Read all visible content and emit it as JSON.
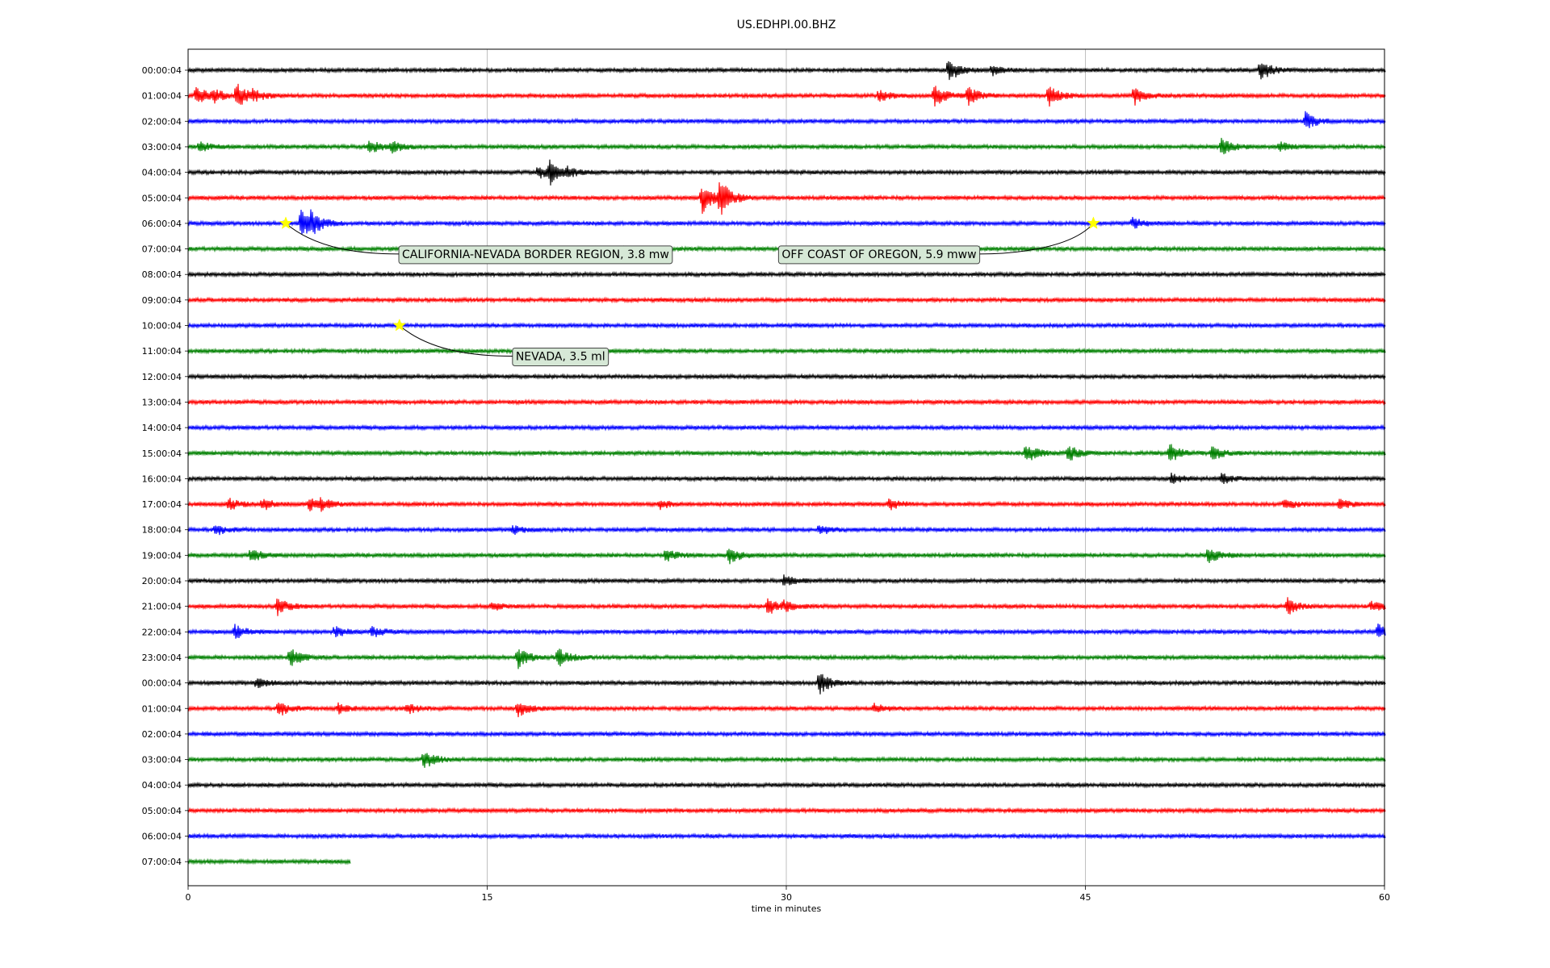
{
  "chart_data": {
    "type": "line",
    "title": "US.EDHPI.00.BHZ",
    "xlabel": "time in minutes",
    "xlim": [
      0,
      60
    ],
    "x_ticks": [
      "0",
      "15",
      "30",
      "45",
      "60"
    ],
    "grid": "vertical",
    "row_labels": [
      "00:00:04",
      "01:00:04",
      "02:00:04",
      "03:00:04",
      "04:00:04",
      "05:00:04",
      "06:00:04",
      "07:00:04",
      "08:00:04",
      "09:00:04",
      "10:00:04",
      "11:00:04",
      "12:00:04",
      "13:00:04",
      "14:00:04",
      "15:00:04",
      "16:00:04",
      "17:00:04",
      "18:00:04",
      "19:00:04",
      "20:00:04",
      "21:00:04",
      "22:00:04",
      "23:00:04",
      "00:00:04",
      "01:00:04",
      "02:00:04",
      "03:00:04",
      "04:00:04",
      "05:00:04",
      "06:00:04",
      "07:00:04"
    ],
    "trace_colors": [
      "#000000",
      "#ff0000",
      "#0000ff",
      "#008000"
    ],
    "last_row_end_minute": 8.1,
    "bursts": [
      {
        "row": 0,
        "minute": 38.1,
        "amp": 1.0
      },
      {
        "row": 0,
        "minute": 40.3,
        "amp": 0.4
      },
      {
        "row": 0,
        "minute": 53.7,
        "amp": 1.0
      },
      {
        "row": 1,
        "minute": 0.4,
        "amp": 0.8
      },
      {
        "row": 1,
        "minute": 1.2,
        "amp": 0.7
      },
      {
        "row": 1,
        "minute": 2.4,
        "amp": 1.2
      },
      {
        "row": 1,
        "minute": 3.2,
        "amp": 0.6
      },
      {
        "row": 1,
        "minute": 34.6,
        "amp": 0.5
      },
      {
        "row": 1,
        "minute": 37.4,
        "amp": 0.9
      },
      {
        "row": 1,
        "minute": 39.1,
        "amp": 0.8
      },
      {
        "row": 1,
        "minute": 43.1,
        "amp": 0.9
      },
      {
        "row": 1,
        "minute": 47.4,
        "amp": 0.8
      },
      {
        "row": 2,
        "minute": 56.0,
        "amp": 0.8
      },
      {
        "row": 3,
        "minute": 0.5,
        "amp": 0.5
      },
      {
        "row": 3,
        "minute": 9.0,
        "amp": 0.7
      },
      {
        "row": 3,
        "minute": 10.2,
        "amp": 0.5
      },
      {
        "row": 3,
        "minute": 51.8,
        "amp": 0.7
      },
      {
        "row": 3,
        "minute": 54.7,
        "amp": 0.4
      },
      {
        "row": 4,
        "minute": 17.5,
        "amp": 0.6
      },
      {
        "row": 4,
        "minute": 18.1,
        "amp": 1.1
      },
      {
        "row": 4,
        "minute": 19.0,
        "amp": 0.5
      },
      {
        "row": 5,
        "minute": 25.7,
        "amp": 1.4
      },
      {
        "row": 5,
        "minute": 26.6,
        "amp": 2.0
      },
      {
        "row": 6,
        "minute": 5.6,
        "amp": 1.4
      },
      {
        "row": 6,
        "minute": 6.1,
        "amp": 1.4
      },
      {
        "row": 6,
        "minute": 47.3,
        "amp": 0.5
      },
      {
        "row": 15,
        "minute": 42.0,
        "amp": 0.9
      },
      {
        "row": 15,
        "minute": 44.1,
        "amp": 0.7
      },
      {
        "row": 15,
        "minute": 49.2,
        "amp": 0.8
      },
      {
        "row": 15,
        "minute": 51.3,
        "amp": 0.6
      },
      {
        "row": 16,
        "minute": 49.3,
        "amp": 0.4
      },
      {
        "row": 16,
        "minute": 51.8,
        "amp": 0.5
      },
      {
        "row": 17,
        "minute": 2.0,
        "amp": 0.5
      },
      {
        "row": 17,
        "minute": 3.7,
        "amp": 0.5
      },
      {
        "row": 17,
        "minute": 6.0,
        "amp": 0.6
      },
      {
        "row": 17,
        "minute": 6.6,
        "amp": 0.6
      },
      {
        "row": 17,
        "minute": 23.6,
        "amp": 0.4
      },
      {
        "row": 17,
        "minute": 35.1,
        "amp": 0.5
      },
      {
        "row": 17,
        "minute": 54.9,
        "amp": 0.5
      },
      {
        "row": 17,
        "minute": 57.7,
        "amp": 0.5
      },
      {
        "row": 18,
        "minute": 1.3,
        "amp": 0.5
      },
      {
        "row": 18,
        "minute": 16.2,
        "amp": 0.4
      },
      {
        "row": 18,
        "minute": 31.6,
        "amp": 0.5
      },
      {
        "row": 19,
        "minute": 3.1,
        "amp": 0.6
      },
      {
        "row": 19,
        "minute": 23.9,
        "amp": 0.6
      },
      {
        "row": 19,
        "minute": 27.1,
        "amp": 0.7
      },
      {
        "row": 19,
        "minute": 51.1,
        "amp": 0.9
      },
      {
        "row": 20,
        "minute": 29.8,
        "amp": 0.5
      },
      {
        "row": 21,
        "minute": 4.4,
        "amp": 0.8
      },
      {
        "row": 21,
        "minute": 15.2,
        "amp": 0.4
      },
      {
        "row": 21,
        "minute": 29.0,
        "amp": 0.8
      },
      {
        "row": 21,
        "minute": 29.8,
        "amp": 0.6
      },
      {
        "row": 21,
        "minute": 55.1,
        "amp": 0.7
      },
      {
        "row": 21,
        "minute": 59.3,
        "amp": 0.5
      },
      {
        "row": 22,
        "minute": 2.3,
        "amp": 0.6
      },
      {
        "row": 22,
        "minute": 7.3,
        "amp": 0.5
      },
      {
        "row": 22,
        "minute": 9.2,
        "amp": 0.5
      },
      {
        "row": 22,
        "minute": 59.6,
        "amp": 0.7
      },
      {
        "row": 23,
        "minute": 5.1,
        "amp": 0.8
      },
      {
        "row": 23,
        "minute": 16.5,
        "amp": 0.9
      },
      {
        "row": 23,
        "minute": 18.5,
        "amp": 1.0
      },
      {
        "row": 24,
        "minute": 3.4,
        "amp": 0.4
      },
      {
        "row": 24,
        "minute": 31.6,
        "amp": 1.0
      },
      {
        "row": 25,
        "minute": 4.5,
        "amp": 0.7
      },
      {
        "row": 25,
        "minute": 7.5,
        "amp": 0.4
      },
      {
        "row": 25,
        "minute": 10.9,
        "amp": 0.5
      },
      {
        "row": 25,
        "minute": 16.5,
        "amp": 0.7
      },
      {
        "row": 25,
        "minute": 34.4,
        "amp": 0.5
      },
      {
        "row": 27,
        "minute": 11.8,
        "amp": 0.8
      }
    ],
    "events": [
      {
        "label": "CALIFORNIA-NEVADA BORDER REGION, 3.8 mw",
        "row": 6,
        "minute": 4.9
      },
      {
        "label": "OFF COAST OF OREGON, 5.9 mww",
        "row": 6,
        "minute": 45.4
      },
      {
        "label": "NEVADA, 3.5 ml",
        "row": 10,
        "minute": 10.6
      }
    ]
  }
}
